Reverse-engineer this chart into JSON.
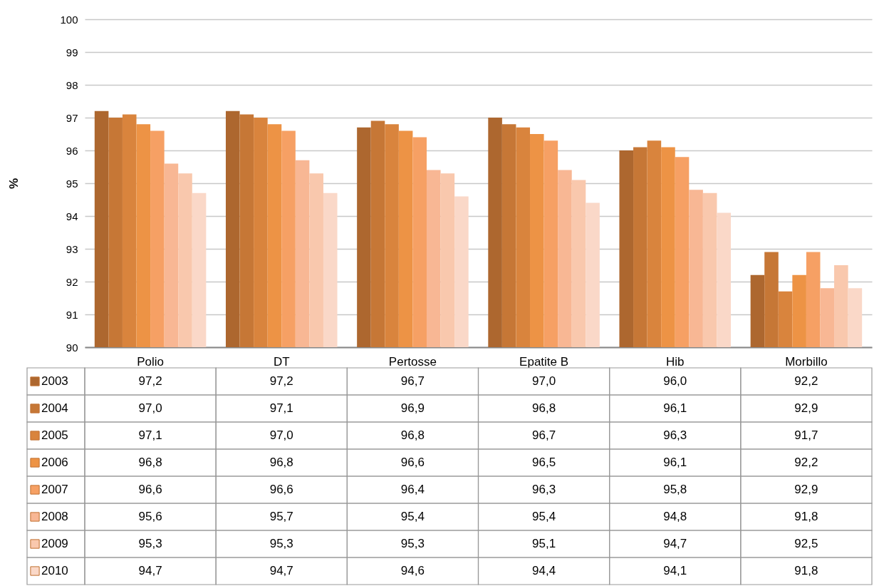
{
  "chart_data": {
    "type": "bar",
    "ylabel": "%",
    "categories": [
      "Polio",
      "DT",
      "Pertosse",
      "Epatite B",
      "Hib",
      "Morbillo"
    ],
    "series": [
      {
        "name": "2003",
        "color": "#ad672f",
        "values": [
          97.2,
          97.2,
          96.7,
          97.0,
          96.0,
          92.2
        ],
        "value_labels": [
          "97,2",
          "97,2",
          "96,7",
          "97,0",
          "96,0",
          "92,2"
        ]
      },
      {
        "name": "2004",
        "color": "#c67736",
        "values": [
          97.0,
          97.1,
          96.9,
          96.8,
          96.1,
          92.9
        ],
        "value_labels": [
          "97,0",
          "97,1",
          "96,9",
          "96,8",
          "96,1",
          "92,9"
        ]
      },
      {
        "name": "2005",
        "color": "#d9843d",
        "values": [
          97.1,
          97.0,
          96.8,
          96.7,
          96.3,
          91.7
        ],
        "value_labels": [
          "97,1",
          "97,0",
          "96,8",
          "96,7",
          "96,3",
          "91,7"
        ]
      },
      {
        "name": "2006",
        "color": "#ed9345",
        "values": [
          96.8,
          96.8,
          96.6,
          96.5,
          96.1,
          92.2
        ],
        "value_labels": [
          "96,8",
          "96,8",
          "96,6",
          "96,5",
          "96,1",
          "92,2"
        ]
      },
      {
        "name": "2007",
        "color": "#f6a064",
        "values": [
          96.6,
          96.6,
          96.4,
          96.3,
          95.8,
          92.9
        ],
        "value_labels": [
          "96,6",
          "96,6",
          "96,4",
          "96,3",
          "95,8",
          "92,9"
        ]
      },
      {
        "name": "2008",
        "color": "#f8b794",
        "values": [
          95.6,
          95.7,
          95.4,
          95.4,
          94.8,
          91.8
        ],
        "value_labels": [
          "95,6",
          "95,7",
          "95,4",
          "95,4",
          "94,8",
          "91,8"
        ]
      },
      {
        "name": "2009",
        "color": "#f9c8ad",
        "values": [
          95.3,
          95.3,
          95.3,
          95.1,
          94.7,
          92.5
        ],
        "value_labels": [
          "95,3",
          "95,3",
          "95,3",
          "95,1",
          "94,7",
          "92,5"
        ]
      },
      {
        "name": "2010",
        "color": "#fad8c8",
        "values": [
          94.7,
          94.7,
          94.6,
          94.4,
          94.1,
          91.8
        ],
        "value_labels": [
          "94,7",
          "94,7",
          "94,6",
          "94,4",
          "94,1",
          "91,8"
        ]
      }
    ],
    "ylim": [
      90,
      100
    ],
    "yticks": [
      90,
      91,
      92,
      93,
      94,
      95,
      96,
      97,
      98,
      99,
      100
    ],
    "grid": "y",
    "legend": "bottom left"
  }
}
